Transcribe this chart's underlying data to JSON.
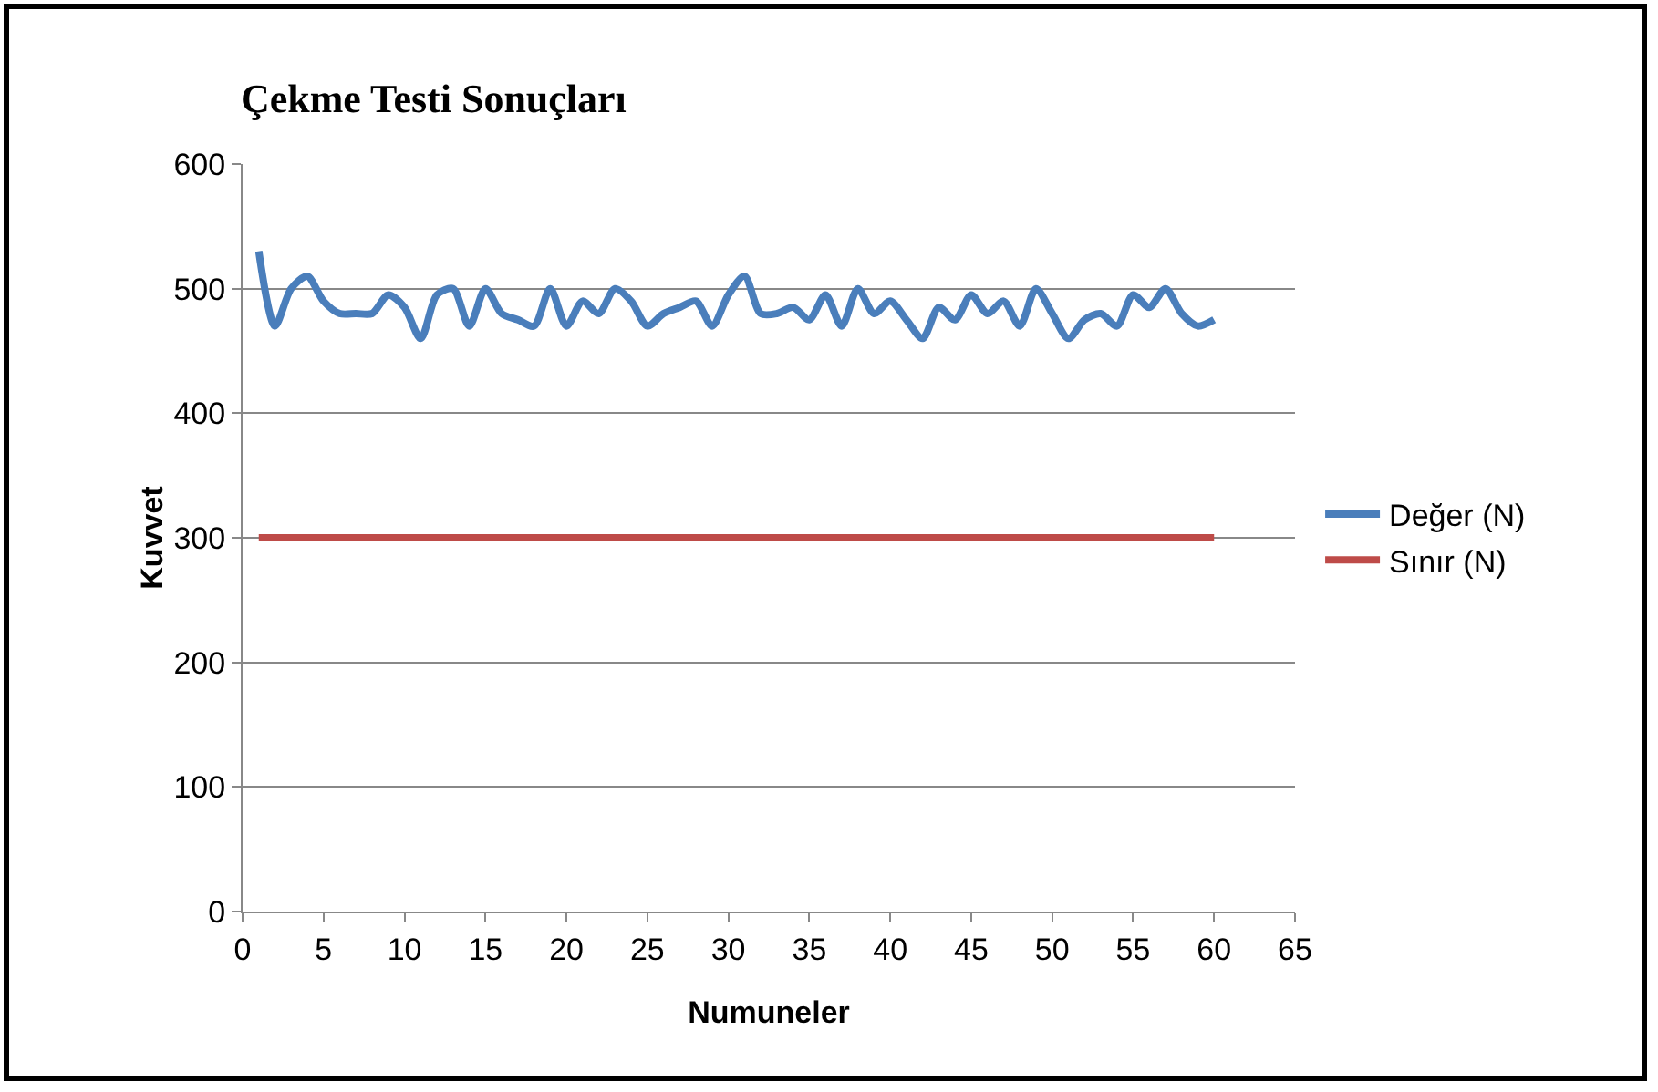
{
  "chart_data": {
    "type": "line",
    "title": "Çekme Testi Sonuçları",
    "xlabel": "Numuneler",
    "ylabel": "Kuvvet",
    "x": [
      1,
      2,
      3,
      4,
      5,
      6,
      7,
      8,
      9,
      10,
      11,
      12,
      13,
      14,
      15,
      16,
      17,
      18,
      19,
      20,
      21,
      22,
      23,
      24,
      25,
      26,
      27,
      28,
      29,
      30,
      31,
      32,
      33,
      34,
      35,
      36,
      37,
      38,
      39,
      40,
      41,
      42,
      43,
      44,
      45,
      46,
      47,
      48,
      49,
      50,
      51,
      52,
      53,
      54,
      55,
      56,
      57,
      58,
      59,
      60
    ],
    "series": [
      {
        "name": "Değer (N)",
        "color": "#4a7ebb",
        "values": [
          530,
          470,
          500,
          510,
          490,
          480,
          480,
          480,
          495,
          485,
          460,
          495,
          500,
          470,
          500,
          480,
          475,
          470,
          500,
          470,
          490,
          480,
          500,
          490,
          470,
          480,
          485,
          490,
          470,
          495,
          510,
          480,
          480,
          485,
          475,
          495,
          470,
          500,
          480,
          490,
          475,
          460,
          485,
          475,
          495,
          480,
          490,
          470,
          500,
          480,
          460,
          475,
          480,
          470,
          495,
          485,
          500,
          480,
          470,
          475
        ]
      },
      {
        "name": "Sınır (N)",
        "color": "#be4b48",
        "values": [
          300,
          300,
          300,
          300,
          300,
          300,
          300,
          300,
          300,
          300,
          300,
          300,
          300,
          300,
          300,
          300,
          300,
          300,
          300,
          300,
          300,
          300,
          300,
          300,
          300,
          300,
          300,
          300,
          300,
          300,
          300,
          300,
          300,
          300,
          300,
          300,
          300,
          300,
          300,
          300,
          300,
          300,
          300,
          300,
          300,
          300,
          300,
          300,
          300,
          300,
          300,
          300,
          300,
          300,
          300,
          300,
          300,
          300,
          300,
          300
        ]
      }
    ],
    "xlim": [
      0,
      65
    ],
    "xticks": [
      0,
      5,
      10,
      15,
      20,
      25,
      30,
      35,
      40,
      45,
      50,
      55,
      60,
      65
    ],
    "ylim": [
      0,
      600
    ],
    "yticks": [
      0,
      100,
      200,
      300,
      400,
      500,
      600
    ],
    "grid": "y",
    "legend": "right",
    "marker": "none",
    "line_style": "solid"
  }
}
